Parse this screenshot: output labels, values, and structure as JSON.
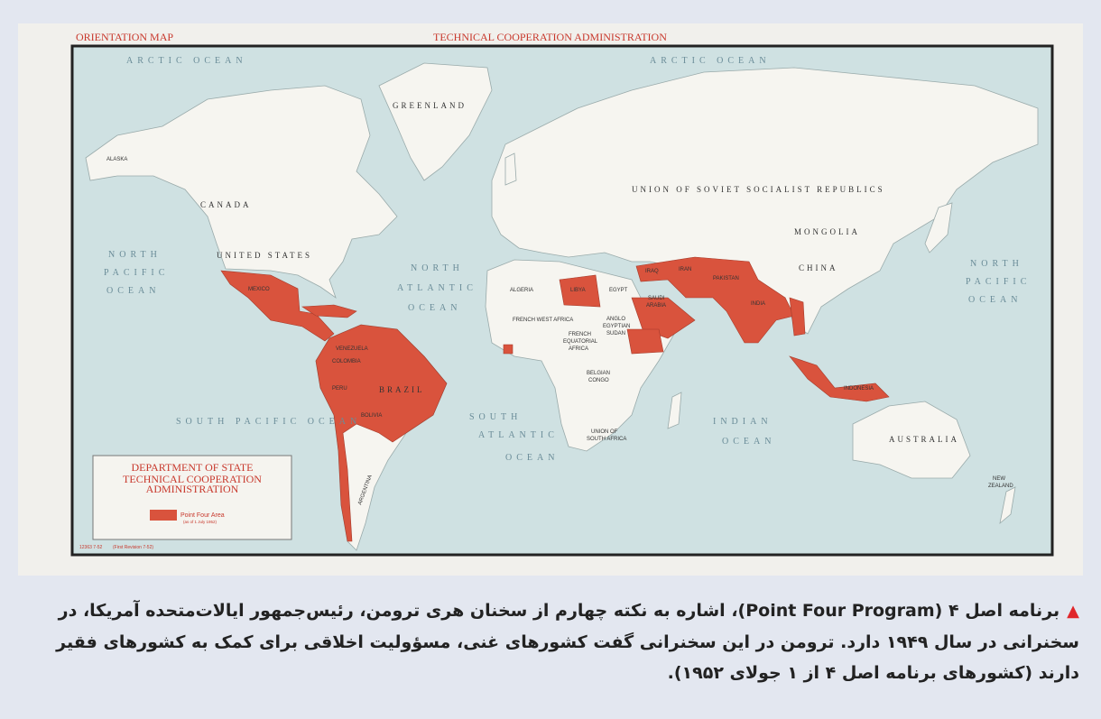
{
  "map": {
    "header_left": "ORIENTATION MAP",
    "header_center": "TECHNICAL COOPERATION ADMINISTRATION",
    "colors": {
      "ocean": "#cfe1e2",
      "land": "#f6f5f0",
      "point_four": "#d9533d",
      "header": "#c8382c"
    },
    "labels": {
      "arctic_ocean_left": "ARCTIC OCEAN",
      "arctic_ocean_right": "ARCTIC OCEAN",
      "greenland": "GREENLAND",
      "alaska": "ALASKA",
      "canada": "CANADA",
      "united_states": "UNITED STATES",
      "mexico": "MEXICO",
      "north_pacific_left": [
        "NORTH",
        "PACIFIC",
        "OCEAN"
      ],
      "north_pacific_right": [
        "NORTH",
        "PACIFIC",
        "OCEAN"
      ],
      "north_atlantic": [
        "NORTH",
        "ATLANTIC",
        "OCEAN"
      ],
      "south_pacific": "SOUTH PACIFIC OCEAN",
      "south_atlantic": [
        "SOUTH",
        "ATLANTIC",
        "OCEAN"
      ],
      "indian_ocean": [
        "INDIAN",
        "OCEAN"
      ],
      "brazil": "BRAZIL",
      "argentina": "ARGENTINA",
      "bolivia": "BOLIVIA",
      "peru": "PERU",
      "colombia": "COLOMBIA",
      "venezuela": "VENEZUELA",
      "ussr": "UNION OF SOVIET SOCIALIST REPUBLICS",
      "mongolia": "MONGOLIA",
      "china": "CHINA",
      "india": "INDIA",
      "iran": "IRAN",
      "iraq": "IRAQ",
      "pakistan": "PAKISTAN",
      "saudi_arabia": [
        "SAUDI",
        "ARABIA"
      ],
      "algeria": "ALGERIA",
      "libya": "LIBYA",
      "egypt": "EGYPT",
      "french_west_africa": "FRENCH WEST AFRICA",
      "anglo_egyptian_sudan": [
        "ANGLO",
        "EGYPTIAN",
        "SUDAN"
      ],
      "french_equatorial_africa": [
        "FRENCH",
        "EQUATORIAL",
        "AFRICA"
      ],
      "belgian_congo": [
        "BELGIAN",
        "CONGO"
      ],
      "south_africa": [
        "UNION OF",
        "SOUTH AFRICA"
      ],
      "indonesia": "INDONESIA",
      "australia": "AUSTRALIA",
      "new_zealand": [
        "NEW",
        "ZEALAND"
      ]
    },
    "legend": {
      "line1": "DEPARTMENT OF STATE",
      "line2": "TECHNICAL COOPERATION",
      "line3": "ADMINISTRATION",
      "item_label": "Point Four Area",
      "item_note": "(as of 1 July 1952)"
    },
    "map_number": "12363 7-52",
    "revision": "(First Revision 7-52)"
  },
  "caption": {
    "marker_icon": "red-triangle",
    "text": "برنامه اصل ۴ (Point Four Program)، اشاره به نکته چهارم از سخنان هری ترومن، رئیس‌جمهور ایالات‌متحده آمریکا، در سخنرانی در سال ۱۹۴۹ دارد. ترومن در این سخنرانی گفت کشورهای غنی، مسؤولیت اخلاقی برای کمک به کشورهای فقیر دارند (کشورهای برنامه اصل ۴ از ۱ جولای ۱۹۵۲)."
  }
}
